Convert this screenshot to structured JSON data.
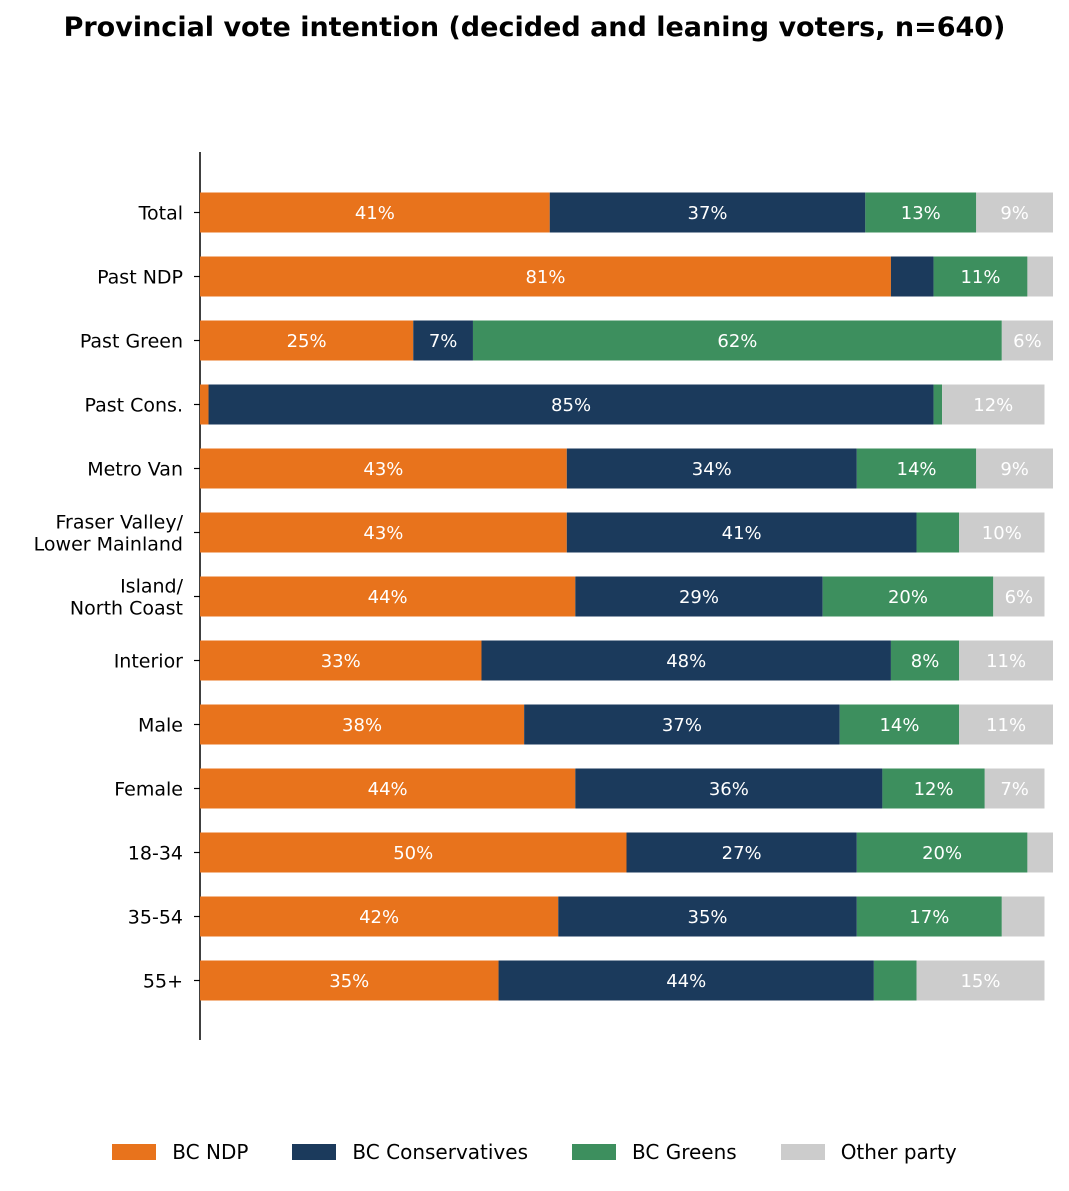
{
  "chart_data": {
    "type": "bar",
    "orientation": "horizontal",
    "stacked": true,
    "title": "Provincial vote intention (decided and leaning voters, n=640)",
    "xlabel": "",
    "ylabel": "",
    "xlim": [
      0,
      100
    ],
    "grid": false,
    "legend_position": "bottom",
    "categories": [
      "Total",
      "Past NDP",
      "Past Green",
      "Past Cons.",
      "Metro Van",
      "Fraser Valley/\nLower Mainland",
      "Island/\nNorth Coast",
      "Interior",
      "Male",
      "Female",
      "18-34",
      "35-54",
      "55+"
    ],
    "series": [
      {
        "name": "BC NDP",
        "color": "#e8731c",
        "values": [
          41,
          81,
          25,
          1,
          43,
          43,
          44,
          33,
          38,
          44,
          50,
          42,
          35
        ]
      },
      {
        "name": "BC Conservatives",
        "color": "#1b3a5c",
        "values": [
          37,
          5,
          7,
          85,
          34,
          41,
          29,
          48,
          37,
          36,
          27,
          35,
          44
        ]
      },
      {
        "name": "BC Greens",
        "color": "#3d8f5e",
        "values": [
          13,
          11,
          62,
          1,
          14,
          5,
          20,
          8,
          14,
          12,
          20,
          17,
          5
        ]
      },
      {
        "name": "Other party",
        "color": "#cccccc",
        "values": [
          9,
          3,
          6,
          12,
          9,
          10,
          6,
          11,
          11,
          7,
          3,
          5,
          15
        ]
      }
    ],
    "label_min": 6
  }
}
